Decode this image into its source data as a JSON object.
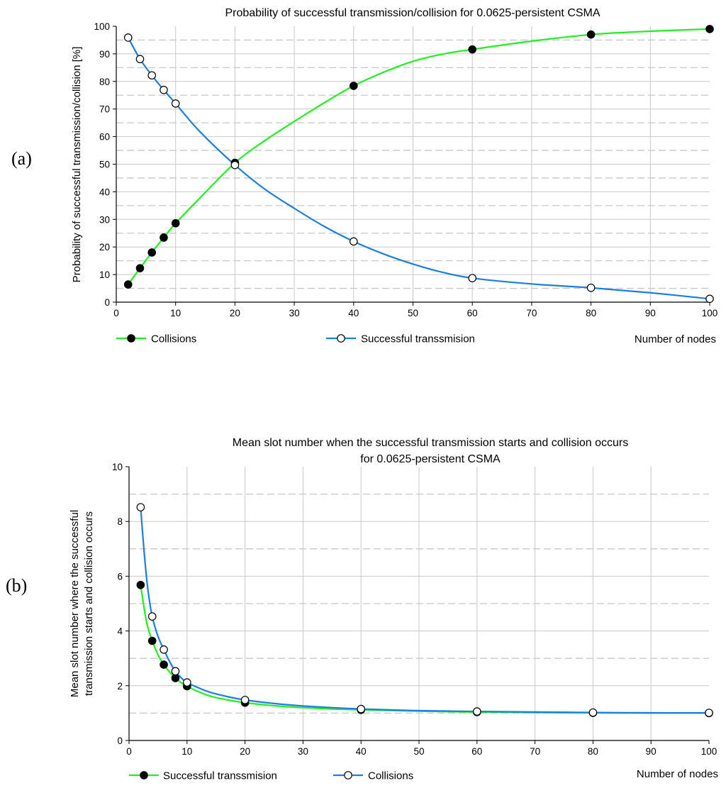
{
  "chart_data": [
    {
      "panel_label": "(a)",
      "type": "line",
      "title": [
        "Probability of successful transmission/collision for 0.0625-persistent CSMA"
      ],
      "xlabel": "Number of nodes",
      "ylabel": [
        "Probability of successful transmission/collision [%]"
      ],
      "xlim": [
        0,
        100
      ],
      "ylim": [
        0,
        100
      ],
      "xticks": [
        0,
        10,
        20,
        30,
        40,
        50,
        60,
        70,
        80,
        90,
        100
      ],
      "yticks": [
        0,
        10,
        20,
        30,
        40,
        50,
        60,
        70,
        80,
        90,
        100
      ],
      "minor_dashed_y": [
        5,
        15,
        25,
        35,
        45,
        55,
        65,
        75,
        85,
        95
      ],
      "grid": true,
      "legend_placement": "bottom",
      "series": [
        {
          "name": "Collisions",
          "color": "#22ee22",
          "marker": "filled-circle",
          "points": [
            [
              2,
              6.4
            ],
            [
              4,
              12.3
            ],
            [
              6,
              18.0
            ],
            [
              8,
              23.4
            ],
            [
              10,
              28.6
            ],
            [
              20,
              50.5
            ],
            [
              40,
              78.4
            ],
            [
              60,
              91.6
            ],
            [
              80,
              97.0
            ],
            [
              100,
              99.0
            ]
          ],
          "curve": [
            [
              2,
              6.4
            ],
            [
              4,
              12.3
            ],
            [
              6,
              18.0
            ],
            [
              8,
              23.4
            ],
            [
              10,
              28.6
            ],
            [
              14,
              37.5
            ],
            [
              20,
              50.5
            ],
            [
              25,
              58.5
            ],
            [
              30,
              65.5
            ],
            [
              35,
              72.2
            ],
            [
              40,
              78.4
            ],
            [
              45,
              83.3
            ],
            [
              50,
              87.3
            ],
            [
              55,
              89.9
            ],
            [
              60,
              91.6
            ],
            [
              70,
              94.6
            ],
            [
              80,
              97.0
            ],
            [
              90,
              98.2
            ],
            [
              100,
              99.0
            ]
          ]
        },
        {
          "name": "Successful transsmision",
          "color": "#1a7fe0",
          "marker": "open-circle",
          "points": [
            [
              2,
              95.9
            ],
            [
              4,
              88.1
            ],
            [
              6,
              82.2
            ],
            [
              8,
              76.9
            ],
            [
              10,
              72.0
            ],
            [
              20,
              49.7
            ],
            [
              40,
              22.0
            ],
            [
              60,
              8.7
            ],
            [
              80,
              5.2
            ],
            [
              100,
              1.2
            ]
          ],
          "curve": [
            [
              2,
              95.9
            ],
            [
              4,
              88.1
            ],
            [
              6,
              82.2
            ],
            [
              8,
              76.9
            ],
            [
              10,
              72.0
            ],
            [
              14,
              62.0
            ],
            [
              20,
              49.7
            ],
            [
              25,
              41.0
            ],
            [
              30,
              34.0
            ],
            [
              35,
              27.5
            ],
            [
              40,
              22.0
            ],
            [
              45,
              17.5
            ],
            [
              50,
              13.8
            ],
            [
              55,
              10.8
            ],
            [
              60,
              8.7
            ],
            [
              70,
              6.6
            ],
            [
              80,
              5.2
            ],
            [
              90,
              3.4
            ],
            [
              100,
              1.2
            ]
          ]
        }
      ]
    },
    {
      "panel_label": "(b)",
      "type": "line",
      "title": [
        "Mean slot number when the successful transmission starts and collision occurs",
        "for 0.0625-persistent CSMA"
      ],
      "xlabel": "Number of nodes",
      "ylabel": [
        "Mean slot number where the successful",
        "transmission starts and collision occurs"
      ],
      "xlim": [
        0,
        100
      ],
      "ylim": [
        0,
        10
      ],
      "xticks": [
        0,
        10,
        20,
        30,
        40,
        50,
        60,
        70,
        80,
        90,
        100
      ],
      "yticks": [
        0,
        2,
        4,
        6,
        8,
        10
      ],
      "minor_dashed_y": [
        1,
        3,
        5,
        7,
        9
      ],
      "grid": true,
      "legend_placement": "bottom",
      "series": [
        {
          "name": "Successful transsmision",
          "color": "#22ee22",
          "marker": "filled-circle",
          "points": [
            [
              2,
              5.68
            ],
            [
              4,
              3.64
            ],
            [
              6,
              2.77
            ],
            [
              8,
              2.28
            ],
            [
              10,
              1.98
            ],
            [
              20,
              1.38
            ],
            [
              40,
              1.12
            ],
            [
              60,
              1.04
            ],
            [
              80,
              1.01
            ],
            [
              100,
              1.0
            ]
          ],
          "curve": [
            [
              2,
              5.68
            ],
            [
              3,
              4.35
            ],
            [
              4,
              3.64
            ],
            [
              5,
              3.13
            ],
            [
              6,
              2.77
            ],
            [
              7,
              2.5
            ],
            [
              8,
              2.28
            ],
            [
              9,
              2.11
            ],
            [
              10,
              1.98
            ],
            [
              12,
              1.78
            ],
            [
              14,
              1.62
            ],
            [
              17,
              1.48
            ],
            [
              20,
              1.38
            ],
            [
              25,
              1.27
            ],
            [
              30,
              1.2
            ],
            [
              35,
              1.15
            ],
            [
              40,
              1.12
            ],
            [
              50,
              1.07
            ],
            [
              60,
              1.04
            ],
            [
              70,
              1.02
            ],
            [
              80,
              1.01
            ],
            [
              90,
              1.0
            ],
            [
              100,
              1.0
            ]
          ]
        },
        {
          "name": "Collisions",
          "color": "#1a7fe0",
          "marker": "open-circle",
          "points": [
            [
              2,
              8.52
            ],
            [
              4,
              4.53
            ],
            [
              6,
              3.32
            ],
            [
              8,
              2.53
            ],
            [
              10,
              2.12
            ],
            [
              20,
              1.48
            ],
            [
              40,
              1.15
            ],
            [
              60,
              1.06
            ],
            [
              80,
              1.02
            ],
            [
              100,
              1.01
            ]
          ],
          "curve": [
            [
              2,
              8.52
            ],
            [
              2.6,
              6.9
            ],
            [
              3.2,
              5.6
            ],
            [
              4,
              4.53
            ],
            [
              5,
              3.8
            ],
            [
              6,
              3.32
            ],
            [
              7,
              2.88
            ],
            [
              8,
              2.53
            ],
            [
              9,
              2.29
            ],
            [
              10,
              2.12
            ],
            [
              12,
              1.92
            ],
            [
              14,
              1.76
            ],
            [
              17,
              1.6
            ],
            [
              20,
              1.48
            ],
            [
              25,
              1.35
            ],
            [
              30,
              1.26
            ],
            [
              35,
              1.2
            ],
            [
              40,
              1.15
            ],
            [
              50,
              1.09
            ],
            [
              60,
              1.06
            ],
            [
              70,
              1.04
            ],
            [
              80,
              1.02
            ],
            [
              90,
              1.01
            ],
            [
              100,
              1.01
            ]
          ]
        }
      ]
    }
  ]
}
